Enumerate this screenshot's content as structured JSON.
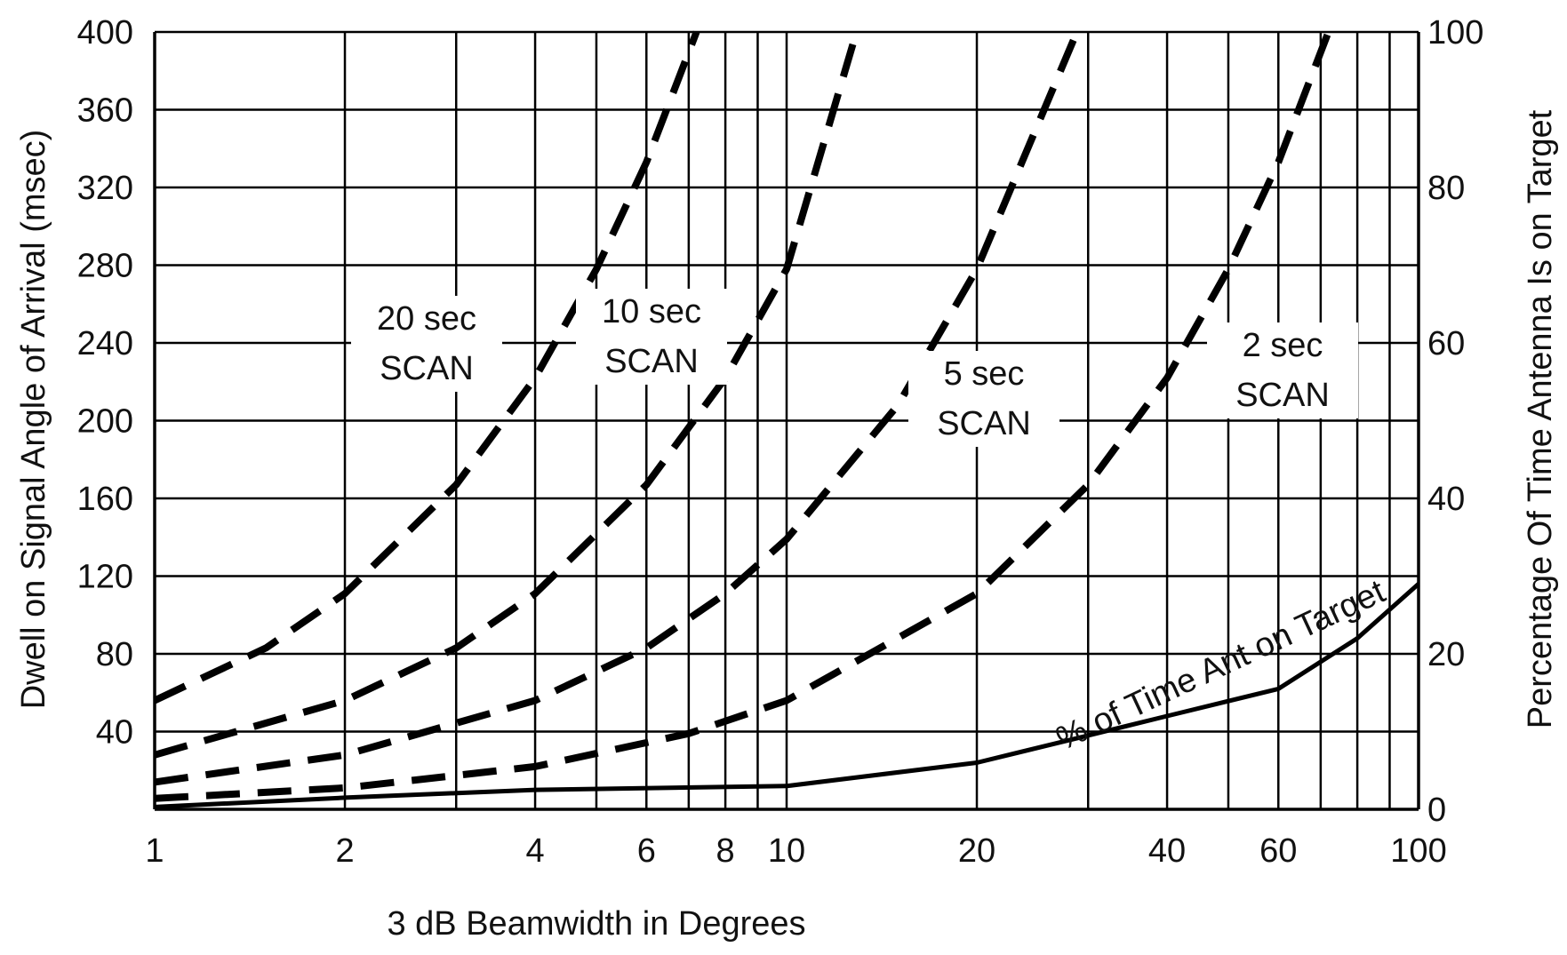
{
  "chart_data": {
    "type": "line",
    "title": "",
    "xlabel": "3 dB Beamwidth in Degrees",
    "ylabel": "Dwell on Signal Angle of Arrival (msec)",
    "y2label": "Percentage Of Time Antenna Is on Target",
    "xscale": "log",
    "xlim": [
      1,
      100
    ],
    "ylim": [
      0,
      400
    ],
    "y2lim": [
      0,
      100
    ],
    "grid": true,
    "x_ticks": [
      "1",
      "2",
      "4",
      "6",
      "8",
      "10",
      "20",
      "40",
      "60",
      "100"
    ],
    "x_tick_values": [
      1,
      2,
      4,
      6,
      8,
      10,
      20,
      40,
      60,
      100
    ],
    "y_ticks": [
      "40",
      "80",
      "120",
      "160",
      "200",
      "240",
      "280",
      "320",
      "360",
      "400"
    ],
    "y_tick_values": [
      40,
      80,
      120,
      160,
      200,
      240,
      280,
      320,
      360,
      400
    ],
    "y2_ticks": [
      "0",
      "20",
      "40",
      "60",
      "80",
      "100"
    ],
    "y2_tick_values": [
      0,
      20,
      40,
      60,
      80,
      100
    ],
    "series": [
      {
        "name": "20 sec SCAN",
        "label_line1": "20 sec",
        "label_line2": "SCAN",
        "style": "dashed",
        "x": [
          1,
          1.5,
          2,
          3,
          4,
          5,
          6,
          7.2
        ],
        "y": [
          56,
          83,
          111,
          167,
          222,
          278,
          333,
          400
        ]
      },
      {
        "name": "10 sec SCAN",
        "label_line1": "10 sec",
        "label_line2": "SCAN",
        "style": "dashed",
        "x": [
          1,
          2,
          3,
          4,
          6,
          8,
          10,
          12.9
        ],
        "y": [
          28,
          56,
          83,
          111,
          167,
          222,
          278,
          400
        ]
      },
      {
        "name": "5 sec SCAN",
        "label_line1": "5 sec",
        "label_line2": "SCAN",
        "style": "dashed",
        "x": [
          1,
          2,
          4,
          6,
          8,
          10,
          15,
          20,
          28.8
        ],
        "y": [
          14,
          28,
          56,
          83,
          111,
          139,
          208,
          278,
          400
        ]
      },
      {
        "name": "2 sec SCAN",
        "label_line1": "2 sec",
        "label_line2": "SCAN",
        "style": "dashed",
        "x": [
          1,
          2,
          4,
          7,
          10,
          20,
          30,
          40,
          50,
          60,
          72
        ],
        "y": [
          5.6,
          11,
          22,
          39,
          56,
          111,
          167,
          222,
          278,
          333,
          400
        ]
      },
      {
        "name": "% of Time Ant on Target",
        "label_line1": "% of Time Ant on Target",
        "style": "solid",
        "axis": "y2",
        "x": [
          1,
          2,
          4,
          10,
          20,
          30,
          40,
          60,
          80,
          100
        ],
        "y": [
          0.3,
          1.5,
          2.5,
          3,
          6,
          9.5,
          12,
          15.5,
          22,
          29
        ]
      }
    ]
  }
}
